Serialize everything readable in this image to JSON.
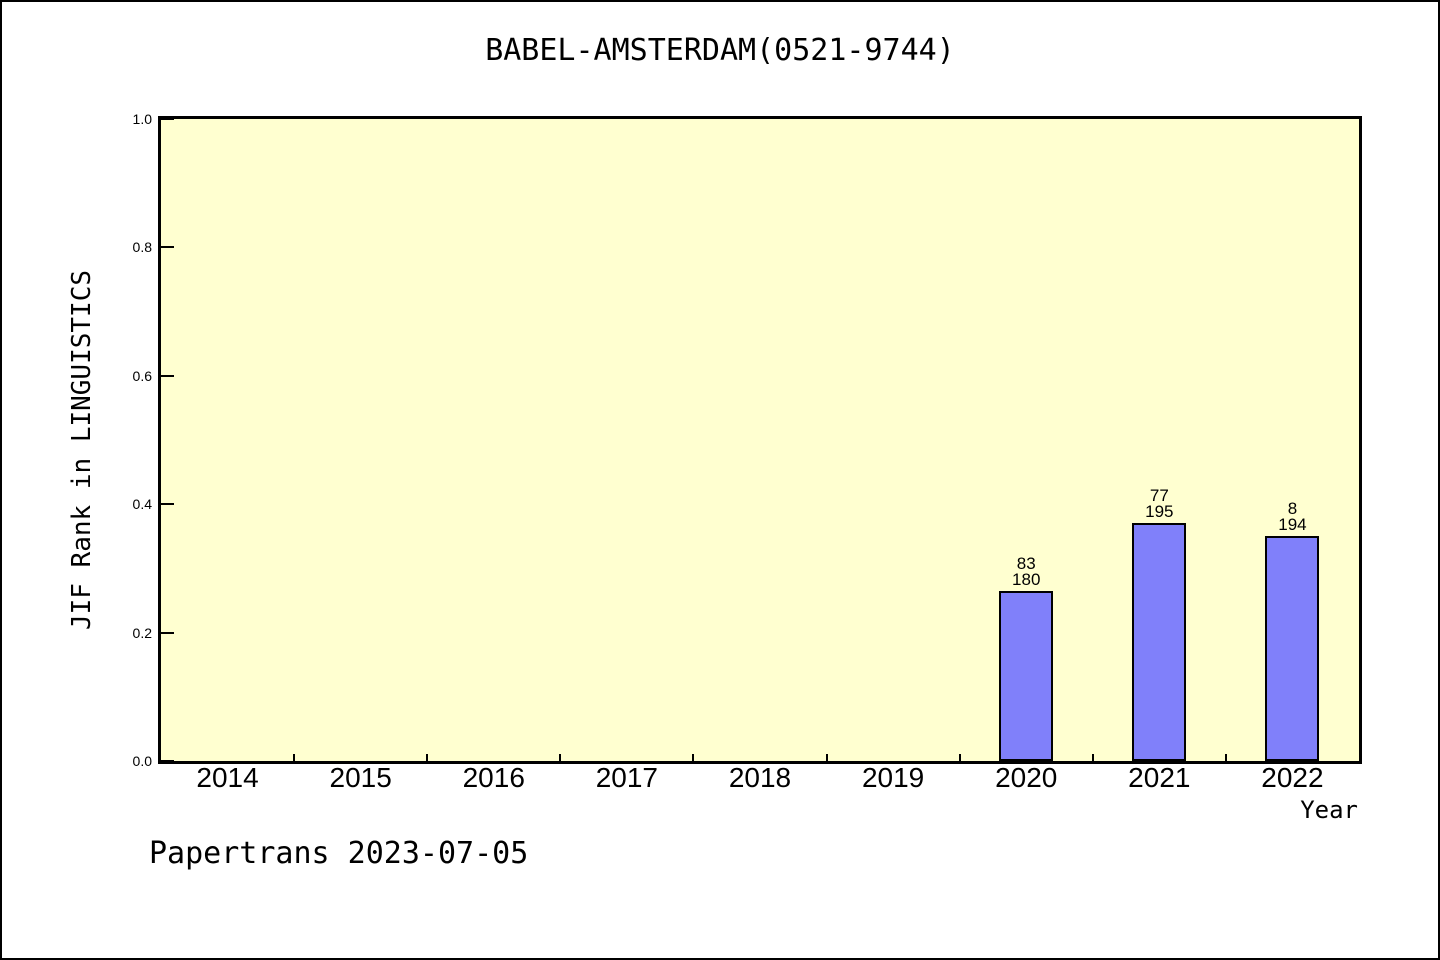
{
  "footer": {
    "text": "Papertrans 2023-07-05"
  },
  "chart_data": {
    "type": "bar",
    "title": "BABEL-AMSTERDAM(0521-9744)",
    "xlabel": "Year",
    "ylabel": "JIF Rank in LINGUISTICS",
    "categories": [
      "2014",
      "2015",
      "2016",
      "2017",
      "2018",
      "2019",
      "2020",
      "2021",
      "2022"
    ],
    "ylim": [
      0,
      1.0
    ],
    "yticks": [
      0.0,
      0.2,
      0.4,
      0.6,
      0.8,
      1.0
    ],
    "ytick_labels": [
      "0.0",
      "0.2",
      "0.4",
      "0.6",
      "0.8",
      "1.0"
    ],
    "grid": false,
    "legend": false,
    "series": [
      {
        "name": "JIF Rank",
        "values": [
          null,
          null,
          null,
          null,
          null,
          null,
          0.265,
          0.37,
          0.35
        ]
      }
    ],
    "bars": [
      {
        "category": "2020",
        "value": 0.265,
        "annotation_rank": "83",
        "annotation_total": "180"
      },
      {
        "category": "2021",
        "value": 0.37,
        "annotation_rank": "77",
        "annotation_total": "195"
      },
      {
        "category": "2022",
        "value": 0.35,
        "annotation_rank": "8",
        "annotation_total": "194"
      }
    ],
    "colors": {
      "bar_fill": "#8080FA",
      "bar_border": "#000000",
      "plot_bg": "#FFFFD0",
      "axis": "#000000",
      "text": "#000000"
    }
  }
}
